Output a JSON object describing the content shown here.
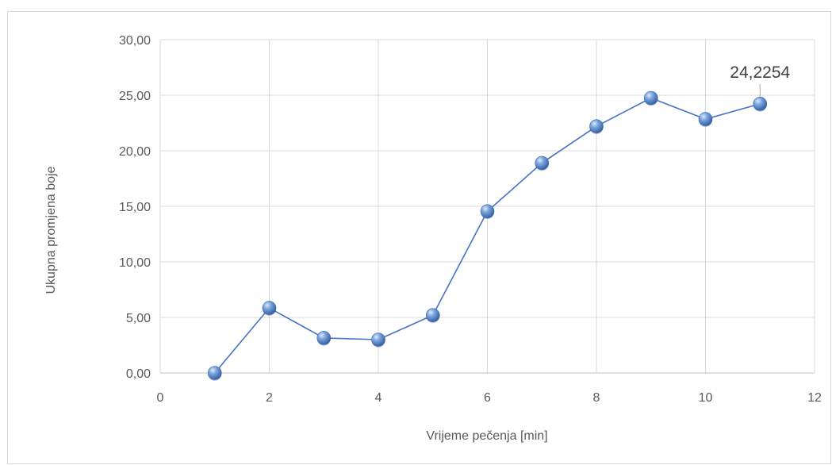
{
  "chart_data": {
    "type": "scatter",
    "title": "",
    "xlabel": "Vrijeme pečenja [min]",
    "ylabel": "Ukupna promjena boje",
    "xlim": [
      0,
      12
    ],
    "ylim": [
      0,
      30
    ],
    "x_ticks": [
      0,
      2,
      4,
      6,
      8,
      10,
      12
    ],
    "x_tick_labels": [
      "0",
      "2",
      "4",
      "6",
      "8",
      "10",
      "12"
    ],
    "y_ticks": [
      0,
      5,
      10,
      15,
      20,
      25,
      30
    ],
    "y_tick_labels": [
      "0,00",
      "5,00",
      "10,00",
      "15,00",
      "20,00",
      "25,00",
      "30,00"
    ],
    "grid": true,
    "legend": "none",
    "series": [
      {
        "line_color": "#4472c4",
        "marker_color": "#5b8fd6",
        "points": [
          {
            "x": 1,
            "y": 0.0
          },
          {
            "x": 2,
            "y": 5.85
          },
          {
            "x": 3,
            "y": 3.15
          },
          {
            "x": 4,
            "y": 3.0
          },
          {
            "x": 5,
            "y": 5.2
          },
          {
            "x": 6,
            "y": 14.55
          },
          {
            "x": 7,
            "y": 18.9
          },
          {
            "x": 8,
            "y": 22.2
          },
          {
            "x": 9,
            "y": 24.75
          },
          {
            "x": 10,
            "y": 22.85
          },
          {
            "x": 11,
            "y": 24.2254
          }
        ]
      }
    ],
    "annotations": [
      {
        "text": "24,2254",
        "x": 11,
        "y": 24.2254
      }
    ]
  }
}
